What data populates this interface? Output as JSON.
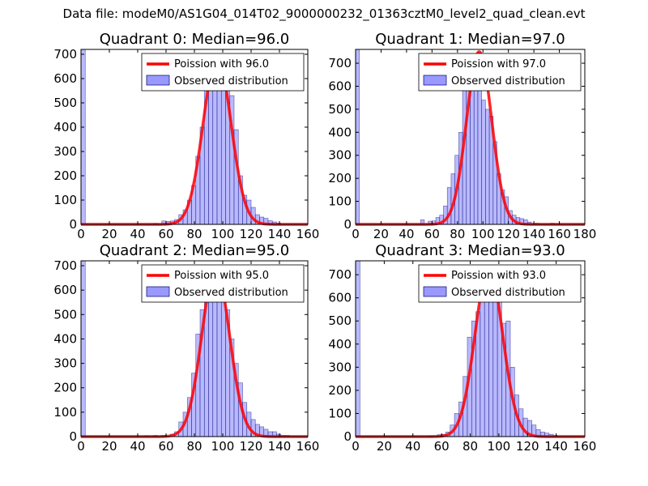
{
  "figure": {
    "title": "Data file: modeM0/AS1G04_014T02_9000000232_01363cztM0_level2_quad_clean.evt"
  },
  "chart_data": [
    {
      "type": "bar",
      "title": "Quadrant 0: Median=96.0",
      "xlim": [
        0,
        160
      ],
      "ylim": [
        0,
        720
      ],
      "xticks": [
        0,
        20,
        40,
        60,
        80,
        100,
        120,
        140,
        160
      ],
      "yticks": [
        0,
        100,
        200,
        300,
        400,
        500,
        600,
        700
      ],
      "legend_position": "top-right",
      "grid": false,
      "bin_width": 3,
      "bins": [
        {
          "x": 0,
          "y": 720
        },
        {
          "x": 51,
          "y": 4
        },
        {
          "x": 57,
          "y": 14
        },
        {
          "x": 60,
          "y": 12
        },
        {
          "x": 63,
          "y": 14
        },
        {
          "x": 66,
          "y": 20
        },
        {
          "x": 69,
          "y": 40
        },
        {
          "x": 72,
          "y": 60
        },
        {
          "x": 75,
          "y": 100
        },
        {
          "x": 78,
          "y": 160
        },
        {
          "x": 81,
          "y": 280
        },
        {
          "x": 84,
          "y": 400
        },
        {
          "x": 87,
          "y": 570
        },
        {
          "x": 90,
          "y": 600
        },
        {
          "x": 93,
          "y": 630
        },
        {
          "x": 96,
          "y": 650
        },
        {
          "x": 99,
          "y": 610
        },
        {
          "x": 102,
          "y": 640
        },
        {
          "x": 105,
          "y": 530
        },
        {
          "x": 108,
          "y": 390
        },
        {
          "x": 111,
          "y": 200
        },
        {
          "x": 114,
          "y": 120
        },
        {
          "x": 117,
          "y": 100
        },
        {
          "x": 120,
          "y": 70
        },
        {
          "x": 123,
          "y": 40
        },
        {
          "x": 126,
          "y": 30
        },
        {
          "x": 129,
          "y": 25
        },
        {
          "x": 132,
          "y": 15
        },
        {
          "x": 135,
          "y": 10
        },
        {
          "x": 138,
          "y": 5
        }
      ],
      "series": [
        {
          "name": "Poission with 96.0",
          "kind": "poisson",
          "mean": 96.0,
          "peak": 690,
          "color": "#ff0000"
        },
        {
          "name": "Observed distribution",
          "kind": "histogram",
          "color": "#8080ff"
        }
      ]
    },
    {
      "type": "bar",
      "title": "Quadrant 1: Median=97.0",
      "xlim": [
        0,
        180
      ],
      "ylim": [
        0,
        760
      ],
      "xticks": [
        0,
        20,
        40,
        60,
        80,
        100,
        120,
        140,
        160,
        180
      ],
      "yticks": [
        0,
        100,
        200,
        300,
        400,
        500,
        600,
        700
      ],
      "legend_position": "top-right",
      "grid": false,
      "bin_width": 3,
      "bins": [
        {
          "x": 0,
          "y": 760
        },
        {
          "x": 51,
          "y": 20
        },
        {
          "x": 57,
          "y": 14
        },
        {
          "x": 60,
          "y": 15
        },
        {
          "x": 63,
          "y": 30
        },
        {
          "x": 66,
          "y": 40
        },
        {
          "x": 69,
          "y": 80
        },
        {
          "x": 72,
          "y": 160
        },
        {
          "x": 75,
          "y": 220
        },
        {
          "x": 78,
          "y": 300
        },
        {
          "x": 81,
          "y": 400
        },
        {
          "x": 84,
          "y": 590
        },
        {
          "x": 87,
          "y": 650
        },
        {
          "x": 90,
          "y": 700
        },
        {
          "x": 93,
          "y": 630
        },
        {
          "x": 96,
          "y": 600
        },
        {
          "x": 99,
          "y": 540
        },
        {
          "x": 102,
          "y": 500
        },
        {
          "x": 105,
          "y": 470
        },
        {
          "x": 108,
          "y": 360
        },
        {
          "x": 111,
          "y": 220
        },
        {
          "x": 114,
          "y": 150
        },
        {
          "x": 117,
          "y": 120
        },
        {
          "x": 120,
          "y": 60
        },
        {
          "x": 123,
          "y": 40
        },
        {
          "x": 126,
          "y": 30
        },
        {
          "x": 129,
          "y": 25
        },
        {
          "x": 132,
          "y": 20
        },
        {
          "x": 135,
          "y": 10
        },
        {
          "x": 141,
          "y": 5
        },
        {
          "x": 153,
          "y": 5
        }
      ],
      "series": [
        {
          "name": "Poission with 97.0",
          "kind": "poisson",
          "mean": 97.0,
          "peak": 750,
          "color": "#ff0000"
        },
        {
          "name": "Observed distribution",
          "kind": "histogram",
          "color": "#8080ff"
        }
      ]
    },
    {
      "type": "bar",
      "title": "Quadrant 2: Median=95.0",
      "xlim": [
        0,
        160
      ],
      "ylim": [
        0,
        720
      ],
      "xticks": [
        0,
        20,
        40,
        60,
        80,
        100,
        120,
        140,
        160
      ],
      "yticks": [
        0,
        100,
        200,
        300,
        400,
        500,
        600,
        700
      ],
      "legend_position": "top-right",
      "grid": false,
      "bin_width": 3,
      "bins": [
        {
          "x": 0,
          "y": 720
        },
        {
          "x": 45,
          "y": 4
        },
        {
          "x": 51,
          "y": 5
        },
        {
          "x": 57,
          "y": 5
        },
        {
          "x": 63,
          "y": 10
        },
        {
          "x": 66,
          "y": 20
        },
        {
          "x": 69,
          "y": 60
        },
        {
          "x": 72,
          "y": 100
        },
        {
          "x": 75,
          "y": 160
        },
        {
          "x": 78,
          "y": 260
        },
        {
          "x": 81,
          "y": 420
        },
        {
          "x": 84,
          "y": 520
        },
        {
          "x": 87,
          "y": 650
        },
        {
          "x": 90,
          "y": 640
        },
        {
          "x": 93,
          "y": 680
        },
        {
          "x": 96,
          "y": 650
        },
        {
          "x": 99,
          "y": 620
        },
        {
          "x": 102,
          "y": 520
        },
        {
          "x": 105,
          "y": 400
        },
        {
          "x": 108,
          "y": 300
        },
        {
          "x": 111,
          "y": 220
        },
        {
          "x": 114,
          "y": 140
        },
        {
          "x": 117,
          "y": 100
        },
        {
          "x": 120,
          "y": 70
        },
        {
          "x": 123,
          "y": 50
        },
        {
          "x": 126,
          "y": 40
        },
        {
          "x": 129,
          "y": 30
        },
        {
          "x": 132,
          "y": 20
        },
        {
          "x": 135,
          "y": 20
        },
        {
          "x": 138,
          "y": 10
        },
        {
          "x": 141,
          "y": 5
        },
        {
          "x": 144,
          "y": 5
        }
      ],
      "series": [
        {
          "name": "Poission with 95.0",
          "kind": "poisson",
          "mean": 95.0,
          "peak": 690,
          "color": "#ff0000"
        },
        {
          "name": "Observed distribution",
          "kind": "histogram",
          "color": "#8080ff"
        }
      ]
    },
    {
      "type": "bar",
      "title": "Quadrant 3: Median=93.0",
      "xlim": [
        0,
        160
      ],
      "ylim": [
        0,
        760
      ],
      "xticks": [
        0,
        20,
        40,
        60,
        80,
        100,
        120,
        140,
        160
      ],
      "yticks": [
        0,
        100,
        200,
        300,
        400,
        500,
        600,
        700
      ],
      "legend_position": "top-right",
      "grid": false,
      "bin_width": 3,
      "bins": [
        {
          "x": 0,
          "y": 760
        },
        {
          "x": 51,
          "y": 4
        },
        {
          "x": 57,
          "y": 8
        },
        {
          "x": 60,
          "y": 10
        },
        {
          "x": 63,
          "y": 20
        },
        {
          "x": 66,
          "y": 50
        },
        {
          "x": 69,
          "y": 100
        },
        {
          "x": 72,
          "y": 150
        },
        {
          "x": 75,
          "y": 260
        },
        {
          "x": 78,
          "y": 430
        },
        {
          "x": 81,
          "y": 500
        },
        {
          "x": 84,
          "y": 540
        },
        {
          "x": 87,
          "y": 600
        },
        {
          "x": 90,
          "y": 620
        },
        {
          "x": 93,
          "y": 640
        },
        {
          "x": 96,
          "y": 660
        },
        {
          "x": 99,
          "y": 590
        },
        {
          "x": 102,
          "y": 490
        },
        {
          "x": 105,
          "y": 500
        },
        {
          "x": 108,
          "y": 300
        },
        {
          "x": 111,
          "y": 180
        },
        {
          "x": 114,
          "y": 120
        },
        {
          "x": 117,
          "y": 80
        },
        {
          "x": 120,
          "y": 70
        },
        {
          "x": 123,
          "y": 50
        },
        {
          "x": 126,
          "y": 30
        },
        {
          "x": 129,
          "y": 20
        },
        {
          "x": 132,
          "y": 15
        },
        {
          "x": 135,
          "y": 10
        },
        {
          "x": 138,
          "y": 5
        }
      ],
      "series": [
        {
          "name": "Poission with 93.0",
          "kind": "poisson",
          "mean": 93.0,
          "peak": 730,
          "color": "#ff0000"
        },
        {
          "name": "Observed distribution",
          "kind": "histogram",
          "color": "#8080ff"
        }
      ]
    }
  ]
}
